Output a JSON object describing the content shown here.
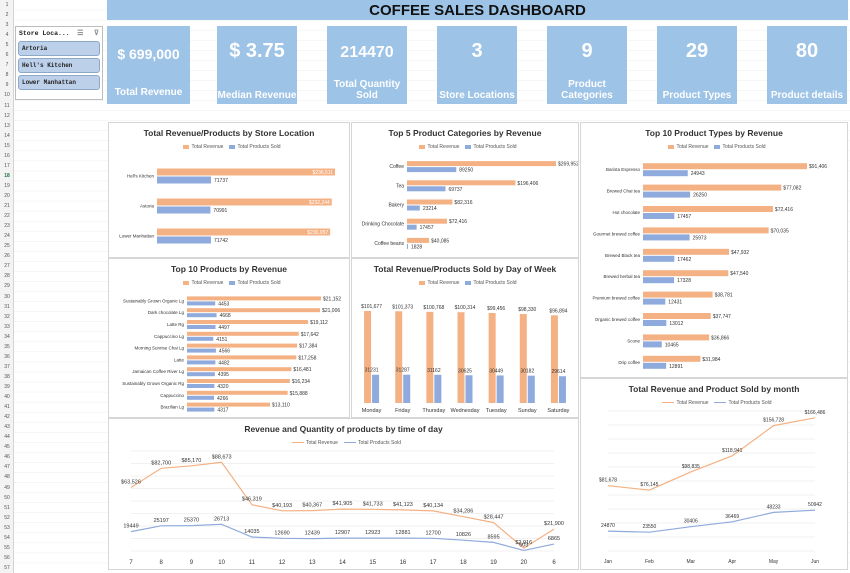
{
  "title": "COFFEE SALES DASHBOARD",
  "colors": {
    "revenue": "#f4b183",
    "products": "#8faadc",
    "kpi": "#9dc3e6"
  },
  "slicer": {
    "title": "Store Loca...",
    "filter_icon": "multi-select-icon",
    "clear_icon": "clear-filter-icon",
    "items": [
      "Artoria",
      "Hell's Kitchen",
      "Lower Manhattan"
    ]
  },
  "kpis": [
    {
      "value": "$ 699,000",
      "label": "Total Revenue"
    },
    {
      "value": "$ 3.75",
      "label": "Median Revenue"
    },
    {
      "value": "214470",
      "label": "Total Quantity Sold"
    },
    {
      "value": "3",
      "label": "Store Locations"
    },
    {
      "value": "9",
      "label": "Product Categories"
    },
    {
      "value": "29",
      "label": "Product Types"
    },
    {
      "value": "80",
      "label": "Product details"
    }
  ],
  "row_numbers": [
    "1",
    "2",
    "3",
    "4",
    "5",
    "6",
    "7",
    "8",
    "9",
    "10",
    "11",
    "12",
    "13",
    "14",
    "15",
    "16",
    "17",
    "18",
    "19",
    "20",
    "21",
    "22",
    "23",
    "24",
    "25",
    "26",
    "27",
    "28",
    "29",
    "30",
    "31",
    "32",
    "33",
    "34",
    "35",
    "36",
    "37",
    "38",
    "39",
    "40",
    "41",
    "42",
    "43",
    "44",
    "45",
    "46",
    "47",
    "48",
    "49",
    "50",
    "51",
    "52",
    "53",
    "54",
    "55",
    "56",
    "57"
  ],
  "legend": {
    "revenue": "Total Revenue",
    "products": "Total Products Sold"
  },
  "chart_data": [
    {
      "id": "store",
      "type": "bar",
      "orientation": "horizontal",
      "title": "Total Revenue/Products by Store Location",
      "categories": [
        "Hell's Kitchen",
        "Astoria",
        "Lower Manhattan"
      ],
      "series": [
        {
          "name": "Total Revenue",
          "values": [
            236511,
            232244,
            230057
          ],
          "labels": [
            "$236,511",
            "$232,244",
            "$230,057"
          ]
        },
        {
          "name": "Total Products Sold",
          "values": [
            71737,
            70991,
            71742
          ],
          "labels": [
            "71737",
            "70991",
            "71742"
          ]
        }
      ]
    },
    {
      "id": "category",
      "type": "bar",
      "orientation": "horizontal",
      "title": "Top 5 Product Categories by Revenue",
      "categories": [
        "Coffee",
        "Tea",
        "Bakery",
        "Drinking Chocolate",
        "Coffee beans"
      ],
      "series": [
        {
          "name": "Total Revenue",
          "values": [
            269952,
            196406,
            82316,
            72416,
            40085
          ],
          "labels": [
            "$269,952",
            "$196,406",
            "$82,316",
            "$72,416",
            "$40,085"
          ]
        },
        {
          "name": "Total Products Sold",
          "values": [
            89250,
            69737,
            23214,
            17457,
            1828
          ],
          "labels": [
            "89250",
            "69737",
            "23214",
            "17457",
            "1828"
          ]
        }
      ]
    },
    {
      "id": "types",
      "type": "bar",
      "orientation": "horizontal",
      "title": "Top 10 Product Types by Revenue",
      "categories": [
        "Barista Espresso",
        "Brewed Chai tea",
        "Hot chocolate",
        "Gourmet brewed coffee",
        "Brewed Black tea",
        "Brewed herbal tea",
        "Premium brewed coffee",
        "Organic brewed coffee",
        "Scone",
        "Drip coffee"
      ],
      "series": [
        {
          "name": "Total Revenue",
          "values": [
            91406,
            77082,
            72416,
            70035,
            47932,
            47540,
            38781,
            37747,
            36866,
            31984
          ],
          "labels": [
            "$91,406",
            "$77,082",
            "$72,416",
            "$70,035",
            "$47,932",
            "$47,540",
            "$38,781",
            "$37,747",
            "$36,866",
            "$31,984"
          ]
        },
        {
          "name": "Total Products Sold",
          "values": [
            24943,
            26250,
            17457,
            25973,
            17462,
            17328,
            12431,
            13012,
            10465,
            12891
          ],
          "labels": [
            "24943",
            "26250",
            "17457",
            "25973",
            "17462",
            "17328",
            "12431",
            "13012",
            "10465",
            "12891"
          ]
        }
      ]
    },
    {
      "id": "products",
      "type": "bar",
      "orientation": "horizontal",
      "title": "Top 10 Products by Revenue",
      "categories": [
        "Sustainably Grown Organic Lg",
        "Dark chocolate Lg",
        "Latte Rg",
        "Cappuccino Lg",
        "Morning Sunrise Chai Lg",
        "Latte",
        "Jamaican Coffee River Lg",
        "Sustainably Grown Organic Rg",
        "Cappuccino",
        "Brazilian Lg"
      ],
      "series": [
        {
          "name": "Total Revenue",
          "values": [
            21152,
            21006,
            19112,
            17642,
            17384,
            17258,
            16481,
            16234,
            15888,
            13110
          ],
          "labels": [
            "$21,152",
            "$21,006",
            "$19,112",
            "$17,642",
            "$17,384",
            "$17,258",
            "$16,481",
            "$16,234",
            "$15,888",
            "$13,110"
          ]
        },
        {
          "name": "Total Products Sold",
          "values": [
            4453,
            4668,
            4497,
            4151,
            4566,
            4482,
            4395,
            4320,
            4266,
            4317
          ],
          "labels": [
            "4453",
            "4668",
            "4497",
            "4151",
            "4566",
            "4482",
            "4395",
            "4320",
            "4266",
            "4317"
          ]
        }
      ]
    },
    {
      "id": "dow",
      "type": "bar",
      "orientation": "vertical",
      "title": "Total Revenue/Products Sold by Day of Week",
      "categories": [
        "Monday",
        "Friday",
        "Thursday",
        "Wednesday",
        "Tuesday",
        "Sunday",
        "Saturday"
      ],
      "series": [
        {
          "name": "Total Revenue",
          "values": [
            101677,
            101373,
            100768,
            100314,
            99456,
            98330,
            96894
          ],
          "labels": [
            "$101,677",
            "$101,373",
            "$100,768",
            "$100,314",
            "$99,456",
            "$98,330",
            "$96,894"
          ]
        },
        {
          "name": "Total Products Sold",
          "values": [
            31231,
            31287,
            31162,
            30625,
            30449,
            30182,
            29614
          ],
          "labels": [
            "31231",
            "31287",
            "31162",
            "30625",
            "30449",
            "30182",
            "29614"
          ]
        }
      ]
    },
    {
      "id": "hour",
      "type": "line",
      "title": "Revenue and Quantity of products by time of day",
      "x": [
        "7",
        "8",
        "9",
        "10",
        "11",
        "12",
        "13",
        "14",
        "15",
        "16",
        "17",
        "18",
        "19",
        "20",
        "6"
      ],
      "series": [
        {
          "name": "Total Revenue",
          "values": [
            63526,
            82700,
            85170,
            88673,
            46319,
            40193,
            40367,
            41905,
            41733,
            41123,
            40134,
            34286,
            28447,
            2916,
            21900
          ],
          "labels": [
            "$63,526",
            "$82,700",
            "$85,170",
            "$88,673",
            "$46,319",
            "$40,193",
            "$40,367",
            "$41,905",
            "$41,733",
            "$41,123",
            "$40,134",
            "$34,286",
            "$28,447",
            "$2,916",
            "$21,900"
          ]
        },
        {
          "name": "Total Products Sold",
          "values": [
            19449,
            25197,
            25370,
            26713,
            14035,
            12690,
            12439,
            12907,
            12923,
            12881,
            12700,
            10826,
            8595,
            603,
            6865
          ],
          "labels": [
            "19449",
            "25197",
            "25370",
            "26713",
            "14035",
            "12690",
            "12439",
            "12907",
            "12923",
            "12881",
            "12700",
            "10826",
            "8595",
            "603",
            "6865"
          ]
        }
      ]
    },
    {
      "id": "month",
      "type": "line",
      "title": "Total Revenue and Product Sold by month",
      "x": [
        "Jan",
        "Feb",
        "Mar",
        "Apr",
        "May",
        "Jun"
      ],
      "series": [
        {
          "name": "Total Revenue",
          "values": [
            81678,
            76145,
            98835,
            118941,
            156728,
            166486
          ],
          "labels": [
            "$81,678",
            "$76,145",
            "$98,835",
            "$118,941",
            "$156,728",
            "$166,486"
          ]
        },
        {
          "name": "Total Products Sold",
          "values": [
            24870,
            23550,
            30406,
            36469,
            48233,
            50942
          ],
          "labels": [
            "24870",
            "23550",
            "30406",
            "36469",
            "48233",
            "50942"
          ]
        }
      ]
    }
  ]
}
